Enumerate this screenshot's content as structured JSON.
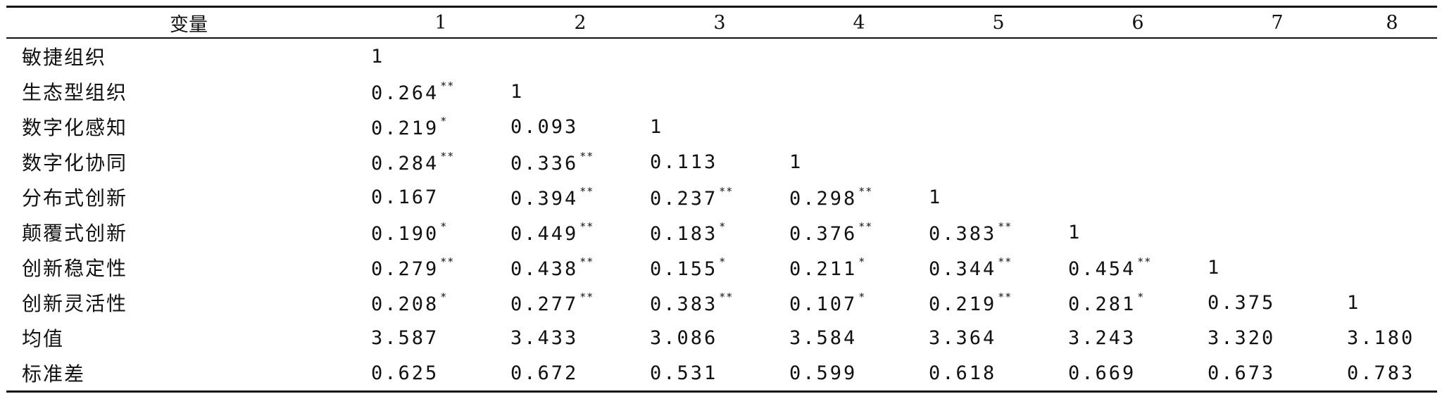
{
  "table": {
    "header": [
      "变量",
      "1",
      "2",
      "3",
      "4",
      "5",
      "6",
      "7",
      "8"
    ],
    "rows": [
      {
        "name": "敏捷组织",
        "cells": [
          {
            "v": "1",
            "s": ""
          }
        ]
      },
      {
        "name": "生态型组织",
        "cells": [
          {
            "v": "0.264",
            "s": "**"
          },
          {
            "v": "1",
            "s": ""
          }
        ]
      },
      {
        "name": "数字化感知",
        "cells": [
          {
            "v": "0.219",
            "s": "*"
          },
          {
            "v": "0.093",
            "s": ""
          },
          {
            "v": "1",
            "s": ""
          }
        ]
      },
      {
        "name": "数字化协同",
        "cells": [
          {
            "v": "0.284",
            "s": "**"
          },
          {
            "v": "0.336",
            "s": "**"
          },
          {
            "v": "0.113",
            "s": ""
          },
          {
            "v": "1",
            "s": ""
          }
        ]
      },
      {
        "name": "分布式创新",
        "cells": [
          {
            "v": "0.167",
            "s": ""
          },
          {
            "v": "0.394",
            "s": "**"
          },
          {
            "v": "0.237",
            "s": "**"
          },
          {
            "v": "0.298",
            "s": "**"
          },
          {
            "v": "1",
            "s": ""
          }
        ]
      },
      {
        "name": "颠覆式创新",
        "cells": [
          {
            "v": "0.190",
            "s": "*"
          },
          {
            "v": "0.449",
            "s": "**"
          },
          {
            "v": "0.183",
            "s": "*"
          },
          {
            "v": "0.376",
            "s": "**"
          },
          {
            "v": "0.383",
            "s": "**"
          },
          {
            "v": "1",
            "s": ""
          }
        ]
      },
      {
        "name": "创新稳定性",
        "cells": [
          {
            "v": "0.279",
            "s": "**"
          },
          {
            "v": "0.438",
            "s": "**"
          },
          {
            "v": "0.155",
            "s": "*"
          },
          {
            "v": "0.211",
            "s": "*"
          },
          {
            "v": "0.344",
            "s": "**"
          },
          {
            "v": "0.454",
            "s": "**"
          },
          {
            "v": "1",
            "s": ""
          }
        ]
      },
      {
        "name": "创新灵活性",
        "cells": [
          {
            "v": "0.208",
            "s": "*"
          },
          {
            "v": "0.277",
            "s": "**"
          },
          {
            "v": "0.383",
            "s": "**"
          },
          {
            "v": "0.107",
            "s": "*"
          },
          {
            "v": "0.219",
            "s": "**"
          },
          {
            "v": "0.281",
            "s": "*"
          },
          {
            "v": "0.375",
            "s": ""
          },
          {
            "v": "1",
            "s": ""
          }
        ]
      },
      {
        "name": "均值",
        "cells": [
          {
            "v": "3.587",
            "s": ""
          },
          {
            "v": "3.433",
            "s": ""
          },
          {
            "v": "3.086",
            "s": ""
          },
          {
            "v": "3.584",
            "s": ""
          },
          {
            "v": "3.364",
            "s": ""
          },
          {
            "v": "3.243",
            "s": ""
          },
          {
            "v": "3.320",
            "s": ""
          },
          {
            "v": "3.180",
            "s": ""
          }
        ]
      },
      {
        "name": "标准差",
        "cells": [
          {
            "v": "0.625",
            "s": ""
          },
          {
            "v": "0.672",
            "s": ""
          },
          {
            "v": "0.531",
            "s": ""
          },
          {
            "v": "0.599",
            "s": ""
          },
          {
            "v": "0.618",
            "s": ""
          },
          {
            "v": "0.669",
            "s": ""
          },
          {
            "v": "0.673",
            "s": ""
          },
          {
            "v": "0.783",
            "s": ""
          }
        ]
      }
    ]
  }
}
